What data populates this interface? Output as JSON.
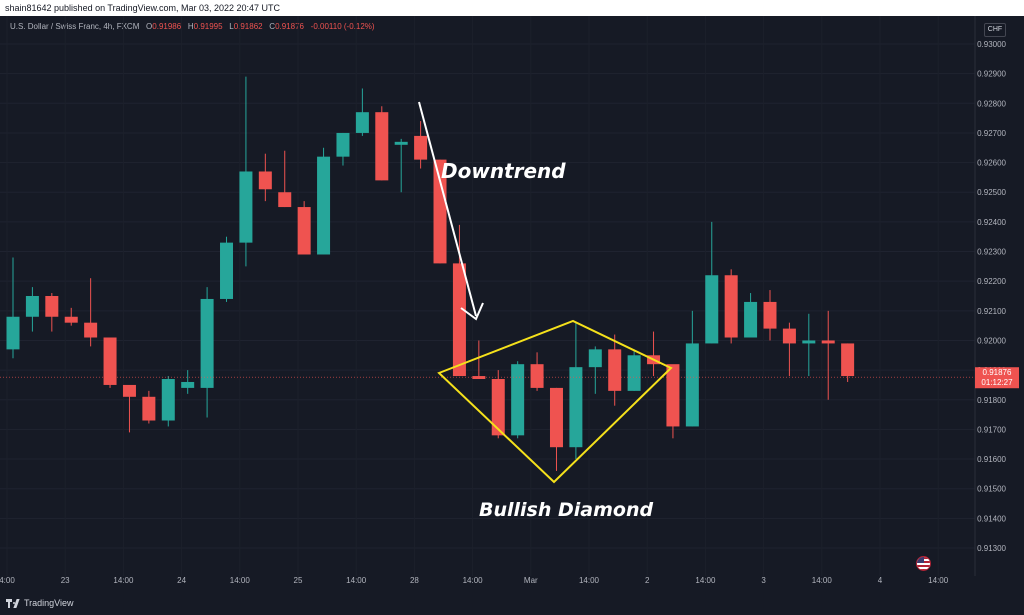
{
  "header": {
    "publish_line": "shain81642 published on TradingView.com, Mar 03, 2022 20:47 UTC"
  },
  "legend": {
    "symbol": "U.S. Dollar / Swiss Franc, 4h, FXCM",
    "open_label": "O",
    "open": "0.91986",
    "high_label": "H",
    "high": "0.91995",
    "low_label": "L",
    "low": "0.91862",
    "close_label": "C",
    "close": "0.91876",
    "change": "-0.00110 (-0.12%)"
  },
  "currency_badge": "CHF",
  "footer": {
    "brand": "TradingView"
  },
  "price_label": {
    "price": "0.91876",
    "countdown": "01:12:27"
  },
  "annotations": {
    "downtrend": "Downtrend",
    "diamond": "Bullish Diamond"
  },
  "colors": {
    "background": "#161a25",
    "up": "#26a69a",
    "down": "#ef5350",
    "diamond": "#f5e11b",
    "arrow": "#ffffff"
  },
  "chart_data": {
    "type": "candlestick",
    "ylim": [
      0.9125,
      0.9305
    ],
    "y_ticks": [
      "0.93000",
      "0.92900",
      "0.92800",
      "0.92700",
      "0.92600",
      "0.92500",
      "0.92400",
      "0.92300",
      "0.92200",
      "0.92100",
      "0.92000",
      "0.91900",
      "0.91800",
      "0.91700",
      "0.91600",
      "0.91500",
      "0.91400",
      "0.91300"
    ],
    "x_ticks": [
      "4:00",
      "23",
      "14:00",
      "24",
      "14:00",
      "25",
      "14:00",
      "28",
      "14:00",
      "Mar",
      "14:00",
      "2",
      "14:00",
      "3",
      "14:00",
      "4",
      "14:00"
    ],
    "last_price": 0.91876,
    "candles": [
      {
        "o": 0.9197,
        "h": 0.9228,
        "l": 0.9194,
        "c": 0.9208
      },
      {
        "o": 0.9208,
        "h": 0.9218,
        "l": 0.9203,
        "c": 0.9215
      },
      {
        "o": 0.9215,
        "h": 0.9216,
        "l": 0.9203,
        "c": 0.9208
      },
      {
        "o": 0.9208,
        "h": 0.9211,
        "l": 0.9205,
        "c": 0.9206
      },
      {
        "o": 0.9206,
        "h": 0.9221,
        "l": 0.9198,
        "c": 0.9201
      },
      {
        "o": 0.9201,
        "h": 0.9201,
        "l": 0.9184,
        "c": 0.9185
      },
      {
        "o": 0.9185,
        "h": 0.9184,
        "l": 0.9169,
        "c": 0.9181
      },
      {
        "o": 0.9181,
        "h": 0.9183,
        "l": 0.9172,
        "c": 0.9173
      },
      {
        "o": 0.9173,
        "h": 0.9188,
        "l": 0.9171,
        "c": 0.9187
      },
      {
        "o": 0.9184,
        "h": 0.919,
        "l": 0.9182,
        "c": 0.9186
      },
      {
        "o": 0.9184,
        "h": 0.9218,
        "l": 0.9174,
        "c": 0.9214
      },
      {
        "o": 0.9214,
        "h": 0.9235,
        "l": 0.9213,
        "c": 0.9233
      },
      {
        "o": 0.9233,
        "h": 0.9289,
        "l": 0.9225,
        "c": 0.9257
      },
      {
        "o": 0.9257,
        "h": 0.9263,
        "l": 0.9247,
        "c": 0.9251
      },
      {
        "o": 0.925,
        "h": 0.9264,
        "l": 0.9245,
        "c": 0.9245
      },
      {
        "o": 0.9245,
        "h": 0.9247,
        "l": 0.9229,
        "c": 0.9229
      },
      {
        "o": 0.9229,
        "h": 0.9265,
        "l": 0.9229,
        "c": 0.9262
      },
      {
        "o": 0.9262,
        "h": 0.927,
        "l": 0.9259,
        "c": 0.927
      },
      {
        "o": 0.927,
        "h": 0.9285,
        "l": 0.9269,
        "c": 0.9277
      },
      {
        "o": 0.9277,
        "h": 0.9279,
        "l": 0.9254,
        "c": 0.9254
      },
      {
        "o": 0.9266,
        "h": 0.9268,
        "l": 0.925,
        "c": 0.9267
      },
      {
        "o": 0.9269,
        "h": 0.9274,
        "l": 0.9258,
        "c": 0.9261
      },
      {
        "o": 0.9261,
        "h": 0.9261,
        "l": 0.9226,
        "c": 0.9226
      },
      {
        "o": 0.9226,
        "h": 0.9239,
        "l": 0.9188,
        "c": 0.9188
      },
      {
        "o": 0.9188,
        "h": 0.92,
        "l": 0.9187,
        "c": 0.9187
      },
      {
        "o": 0.9187,
        "h": 0.919,
        "l": 0.9167,
        "c": 0.9168
      },
      {
        "o": 0.9168,
        "h": 0.9193,
        "l": 0.9167,
        "c": 0.9192
      },
      {
        "o": 0.9192,
        "h": 0.9196,
        "l": 0.9183,
        "c": 0.9184
      },
      {
        "o": 0.9184,
        "h": 0.9184,
        "l": 0.9156,
        "c": 0.9164
      },
      {
        "o": 0.9164,
        "h": 0.9206,
        "l": 0.916,
        "c": 0.9191
      },
      {
        "o": 0.9191,
        "h": 0.9198,
        "l": 0.9182,
        "c": 0.9197
      },
      {
        "o": 0.9197,
        "h": 0.9202,
        "l": 0.9178,
        "c": 0.9183
      },
      {
        "o": 0.9183,
        "h": 0.9197,
        "l": 0.9183,
        "c": 0.9195
      },
      {
        "o": 0.9195,
        "h": 0.9203,
        "l": 0.9188,
        "c": 0.9192
      },
      {
        "o": 0.9192,
        "h": 0.9191,
        "l": 0.9167,
        "c": 0.9171
      },
      {
        "o": 0.9171,
        "h": 0.921,
        "l": 0.9171,
        "c": 0.9199
      },
      {
        "o": 0.9199,
        "h": 0.924,
        "l": 0.9199,
        "c": 0.9222
      },
      {
        "o": 0.9222,
        "h": 0.9224,
        "l": 0.9199,
        "c": 0.9201
      },
      {
        "o": 0.9201,
        "h": 0.9216,
        "l": 0.9201,
        "c": 0.9213
      },
      {
        "o": 0.9213,
        "h": 0.9217,
        "l": 0.92,
        "c": 0.9204
      },
      {
        "o": 0.9204,
        "h": 0.9206,
        "l": 0.9188,
        "c": 0.9199
      },
      {
        "o": 0.9199,
        "h": 0.9209,
        "l": 0.9188,
        "c": 0.92
      },
      {
        "o": 0.92,
        "h": 0.921,
        "l": 0.918,
        "c": 0.9199
      },
      {
        "o": 0.9199,
        "h": 0.9199,
        "l": 0.9186,
        "c": 0.9188
      }
    ]
  }
}
